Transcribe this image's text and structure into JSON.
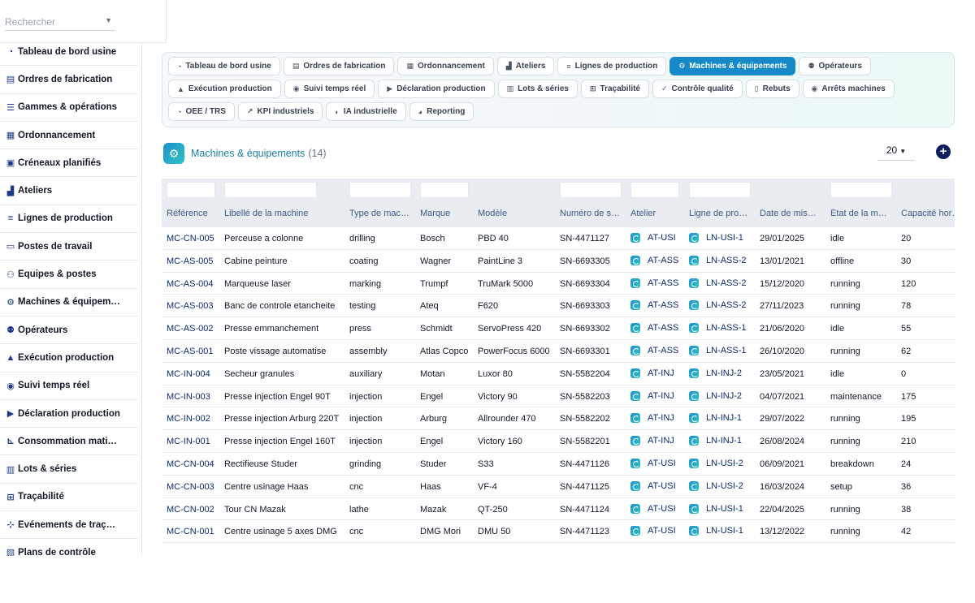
{
  "search": {
    "placeholder": "Rechercher"
  },
  "sidebar": {
    "items": [
      {
        "label": "Tableau de bord usine",
        "icon": "gauge-icon",
        "glyph": "◔"
      },
      {
        "label": "Ordres de fabrication",
        "icon": "clipboard-icon",
        "glyph": "▤"
      },
      {
        "label": "Gammes & opérations",
        "icon": "list-icon",
        "glyph": "☰"
      },
      {
        "label": "Ordonnancement",
        "icon": "calendar-icon",
        "glyph": "▦"
      },
      {
        "label": "Créneaux planifiés",
        "icon": "calendar-check-icon",
        "glyph": "▣"
      },
      {
        "label": "Ateliers",
        "icon": "industry-icon",
        "glyph": "▟"
      },
      {
        "label": "Lignes de production",
        "icon": "lines-icon",
        "glyph": "≡"
      },
      {
        "label": "Postes de travail",
        "icon": "desktop-icon",
        "glyph": "▭"
      },
      {
        "label": "Équipes & postes",
        "icon": "users-icon",
        "glyph": "⚇"
      },
      {
        "label": "Machines & équipem…",
        "icon": "gears-icon",
        "glyph": "⚙"
      },
      {
        "label": "Opérateurs",
        "icon": "operators-icon",
        "glyph": "⚉"
      },
      {
        "label": "Exécution production",
        "icon": "factory-icon",
        "glyph": "▲"
      },
      {
        "label": "Suivi temps réel",
        "icon": "broadcast-icon",
        "glyph": "◉"
      },
      {
        "label": "Déclaration production",
        "icon": "play-circle-icon",
        "glyph": "▶"
      },
      {
        "label": "Consommation mati…",
        "icon": "dolly-icon",
        "glyph": "⊾"
      },
      {
        "label": "Lots & séries",
        "icon": "barcode-icon",
        "glyph": "▥"
      },
      {
        "label": "Traçabilité",
        "icon": "sitemap-icon",
        "glyph": "⊞"
      },
      {
        "label": "Événements de traç…",
        "icon": "network-icon",
        "glyph": "⊹"
      },
      {
        "label": "Plans de contrôle",
        "icon": "clipboard-check-icon",
        "glyph": "▧"
      }
    ]
  },
  "tabs": [
    {
      "label": "Tableau de bord usine",
      "icon": "gauge-icon",
      "glyph": "◔",
      "active": false
    },
    {
      "label": "Ordres de fabrication",
      "icon": "clipboard-icon",
      "glyph": "▤",
      "active": false
    },
    {
      "label": "Ordonnancement",
      "icon": "calendar-icon",
      "glyph": "▦",
      "active": false
    },
    {
      "label": "Ateliers",
      "icon": "industry-icon",
      "glyph": "▟",
      "active": false
    },
    {
      "label": "Lignes de production",
      "icon": "lines-icon",
      "glyph": "≡",
      "active": false
    },
    {
      "label": "Machines & équipements",
      "icon": "gears-icon",
      "glyph": "⚙",
      "active": true
    },
    {
      "label": "Opérateurs",
      "icon": "operators-icon",
      "glyph": "⚉",
      "active": false
    },
    {
      "label": "Exécution production",
      "icon": "factory-icon",
      "glyph": "▲",
      "active": false
    },
    {
      "label": "Suivi temps réel",
      "icon": "broadcast-icon",
      "glyph": "◉",
      "active": false
    },
    {
      "label": "Déclaration production",
      "icon": "play-circle-icon",
      "glyph": "▶",
      "active": false
    },
    {
      "label": "Lots & séries",
      "icon": "barcode-icon",
      "glyph": "▥",
      "active": false
    },
    {
      "label": "Traçabilité",
      "icon": "sitemap-icon",
      "glyph": "⊞",
      "active": false
    },
    {
      "label": "Contrôle qualité",
      "icon": "check-icon",
      "glyph": "✓",
      "active": false
    },
    {
      "label": "Rebuts",
      "icon": "trash-icon",
      "glyph": "▯",
      "active": false
    },
    {
      "label": "Arrêts machines",
      "icon": "stop-circle-icon",
      "glyph": "◉",
      "active": false
    },
    {
      "label": "OEE / TRS",
      "icon": "speedometer-icon",
      "glyph": "◔",
      "active": false
    },
    {
      "label": "KPI industriels",
      "icon": "chart-line-icon",
      "glyph": "↗",
      "active": false
    },
    {
      "label": "IA industrielle",
      "icon": "brain-icon",
      "glyph": "◐",
      "active": false
    },
    {
      "label": "Reporting",
      "icon": "pie-chart-icon",
      "glyph": "◕",
      "active": false
    }
  ],
  "header": {
    "title": "Machines & équipements",
    "count": "(14)",
    "per_page": "20"
  },
  "table": {
    "columns": [
      "Référence",
      "Libellé de la machine",
      "Type de mac…",
      "Marque",
      "Modèle",
      "Numéro de s…",
      "Atelier",
      "Ligne de pro…",
      "Date de mis…",
      "État de la m…",
      "Capacité hor…"
    ],
    "rows": [
      [
        "MC-CN-005",
        "Perceuse a colonne",
        "drilling",
        "Bosch",
        "PBD 40",
        "SN-4471127",
        "AT-USI",
        "LN-USI-1",
        "29/01/2025",
        "idle",
        "20"
      ],
      [
        "MC-AS-005",
        "Cabine peinture",
        "coating",
        "Wagner",
        "PaintLine 3",
        "SN-6693305",
        "AT-ASS",
        "LN-ASS-2",
        "13/01/2021",
        "offline",
        "30"
      ],
      [
        "MC-AS-004",
        "Marqueuse laser",
        "marking",
        "Trumpf",
        "TruMark 5000",
        "SN-6693304",
        "AT-ASS",
        "LN-ASS-2",
        "15/12/2020",
        "running",
        "120"
      ],
      [
        "MC-AS-003",
        "Banc de controle etancheite",
        "testing",
        "Ateq",
        "F620",
        "SN-6693303",
        "AT-ASS",
        "LN-ASS-2",
        "27/11/2023",
        "running",
        "78"
      ],
      [
        "MC-AS-002",
        "Presse emmanchement",
        "press",
        "Schmidt",
        "ServoPress 420",
        "SN-6693302",
        "AT-ASS",
        "LN-ASS-1",
        "21/06/2020",
        "idle",
        "55"
      ],
      [
        "MC-AS-001",
        "Poste vissage automatise",
        "assembly",
        "Atlas Copco",
        "PowerFocus 6000",
        "SN-6693301",
        "AT-ASS",
        "LN-ASS-1",
        "26/10/2020",
        "running",
        "62"
      ],
      [
        "MC-IN-004",
        "Secheur granules",
        "auxiliary",
        "Motan",
        "Luxor 80",
        "SN-5582204",
        "AT-INJ",
        "LN-INJ-2",
        "23/05/2021",
        "idle",
        "0"
      ],
      [
        "MC-IN-003",
        "Presse injection Engel 90T",
        "injection",
        "Engel",
        "Victory 90",
        "SN-5582203",
        "AT-INJ",
        "LN-INJ-2",
        "04/07/2021",
        "maintenance",
        "175"
      ],
      [
        "MC-IN-002",
        "Presse injection Arburg 220T",
        "injection",
        "Arburg",
        "Allrounder 470",
        "SN-5582202",
        "AT-INJ",
        "LN-INJ-1",
        "29/07/2022",
        "running",
        "195"
      ],
      [
        "MC-IN-001",
        "Presse injection Engel 160T",
        "injection",
        "Engel",
        "Victory 160",
        "SN-5582201",
        "AT-INJ",
        "LN-INJ-1",
        "26/08/2024",
        "running",
        "210"
      ],
      [
        "MC-CN-004",
        "Rectifieuse Studer",
        "grinding",
        "Studer",
        "S33",
        "SN-4471126",
        "AT-USI",
        "LN-USI-2",
        "06/09/2021",
        "breakdown",
        "24"
      ],
      [
        "MC-CN-003",
        "Centre usinage Haas",
        "cnc",
        "Haas",
        "VF-4",
        "SN-4471125",
        "AT-USI",
        "LN-USI-2",
        "16/03/2024",
        "setup",
        "36"
      ],
      [
        "MC-CN-002",
        "Tour CN Mazak",
        "lathe",
        "Mazak",
        "QT-250",
        "SN-4471124",
        "AT-USI",
        "LN-USI-1",
        "22/04/2025",
        "running",
        "38"
      ],
      [
        "MC-CN-001",
        "Centre usinage 5 axes DMG",
        "cnc",
        "DMG Mori",
        "DMU 50",
        "SN-4471123",
        "AT-USI",
        "LN-USI-1",
        "13/12/2022",
        "running",
        "42"
      ]
    ]
  }
}
